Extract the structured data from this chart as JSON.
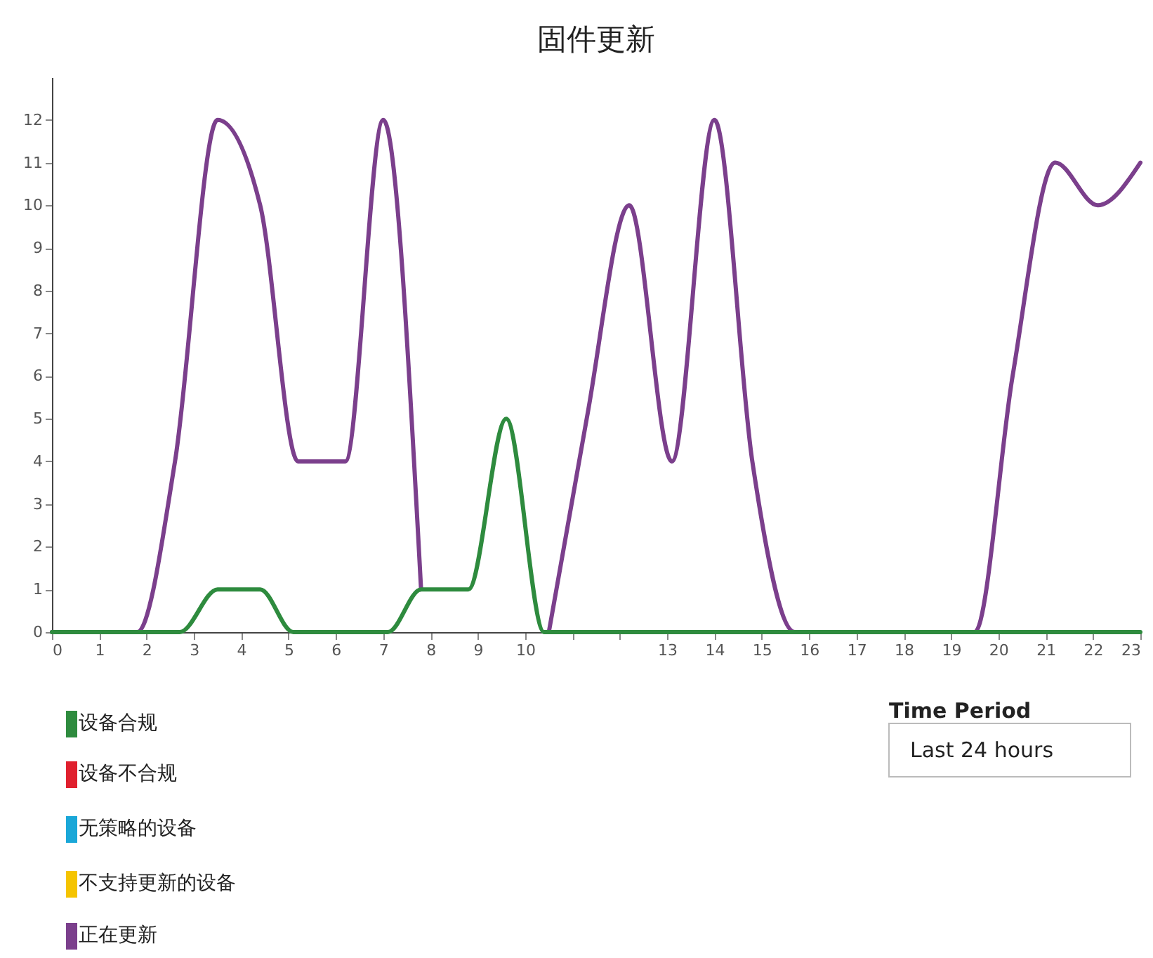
{
  "chart_data": {
    "type": "line",
    "title": "固件更新",
    "xlim": [
      0,
      23
    ],
    "ylim": [
      0,
      13
    ],
    "xticks": [
      0,
      1,
      2,
      3,
      4,
      5,
      6,
      7,
      8,
      9,
      10,
      {
        "value": 11,
        "label": null
      },
      {
        "value": 12,
        "label": null
      },
      13,
      14,
      15,
      16,
      17,
      18,
      19,
      20,
      21,
      22,
      23
    ],
    "yticks": [
      0,
      1,
      2,
      3,
      4,
      5,
      6,
      7,
      8,
      9,
      10,
      11,
      12
    ],
    "grid": false,
    "legend": "bottom left",
    "line_style": "solid",
    "marker": "none",
    "series": [
      {
        "name": "设备合规",
        "color": "#2e8b3e",
        "x": [
          0,
          2.7,
          3.5,
          4.4,
          5.1,
          7.1,
          7.8,
          8.8,
          9.6,
          10.4,
          23
        ],
        "values": [
          0,
          0,
          1,
          1,
          0,
          0,
          1,
          1,
          5,
          0,
          0
        ]
      },
      {
        "name": "设备不合规",
        "color": "#e0202e"
      },
      {
        "name": "无策略的设备",
        "color": "#1aa7d8"
      },
      {
        "name": "不支持更新的设备",
        "color": "#f5c400"
      },
      {
        "name": "正在更新",
        "color": "#7b3f8c",
        "x": [
          0,
          1.8,
          2.6,
          3.5,
          4.4,
          5.2,
          6.2,
          7.0,
          7.8,
          9.0,
          10.5,
          11.3,
          12.2,
          13.1,
          14.0,
          14.8,
          15.7,
          19.5,
          20.3,
          21.2,
          22.1,
          23
        ],
        "values": [
          0,
          0,
          4,
          12,
          10,
          4,
          4,
          12,
          1,
          null,
          0,
          5,
          10,
          4,
          12,
          4,
          0,
          0,
          6,
          11,
          10,
          11
        ]
      }
    ],
    "annotations": [
      "Time Period",
      "Last 24 hours"
    ]
  }
}
